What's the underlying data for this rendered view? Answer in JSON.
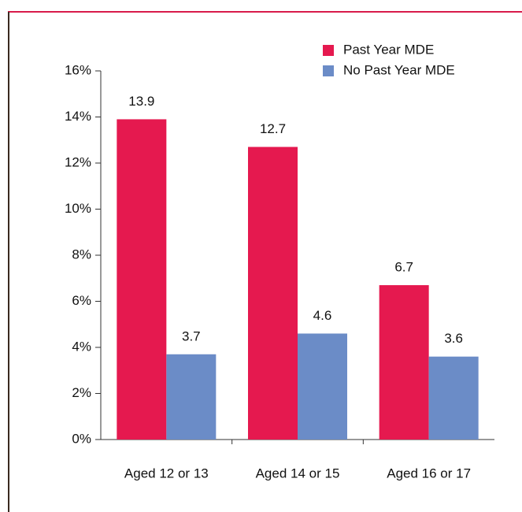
{
  "chart_data": {
    "type": "bar",
    "categories": [
      "Aged 12 or 13",
      "Aged 14 or 15",
      "Aged 16 or 17"
    ],
    "series": [
      {
        "name": "Past Year MDE",
        "color": "#e5194f",
        "values": [
          13.9,
          12.7,
          6.7
        ]
      },
      {
        "name": "No Past Year MDE",
        "color": "#6b8cc7",
        "values": [
          3.7,
          4.6,
          3.6
        ]
      }
    ],
    "ylim": [
      0,
      16
    ],
    "yticks": [
      {
        "value": 0,
        "label": "0%"
      },
      {
        "value": 2,
        "label": "2%"
      },
      {
        "value": 4,
        "label": "4%"
      },
      {
        "value": 6,
        "label": "6%"
      },
      {
        "value": 8,
        "label": "8%"
      },
      {
        "value": 10,
        "label": "10%"
      },
      {
        "value": 12,
        "label": "12%"
      },
      {
        "value": 14,
        "label": "14%"
      },
      {
        "value": 16,
        "label": "16%"
      }
    ],
    "legend": "upper right"
  }
}
